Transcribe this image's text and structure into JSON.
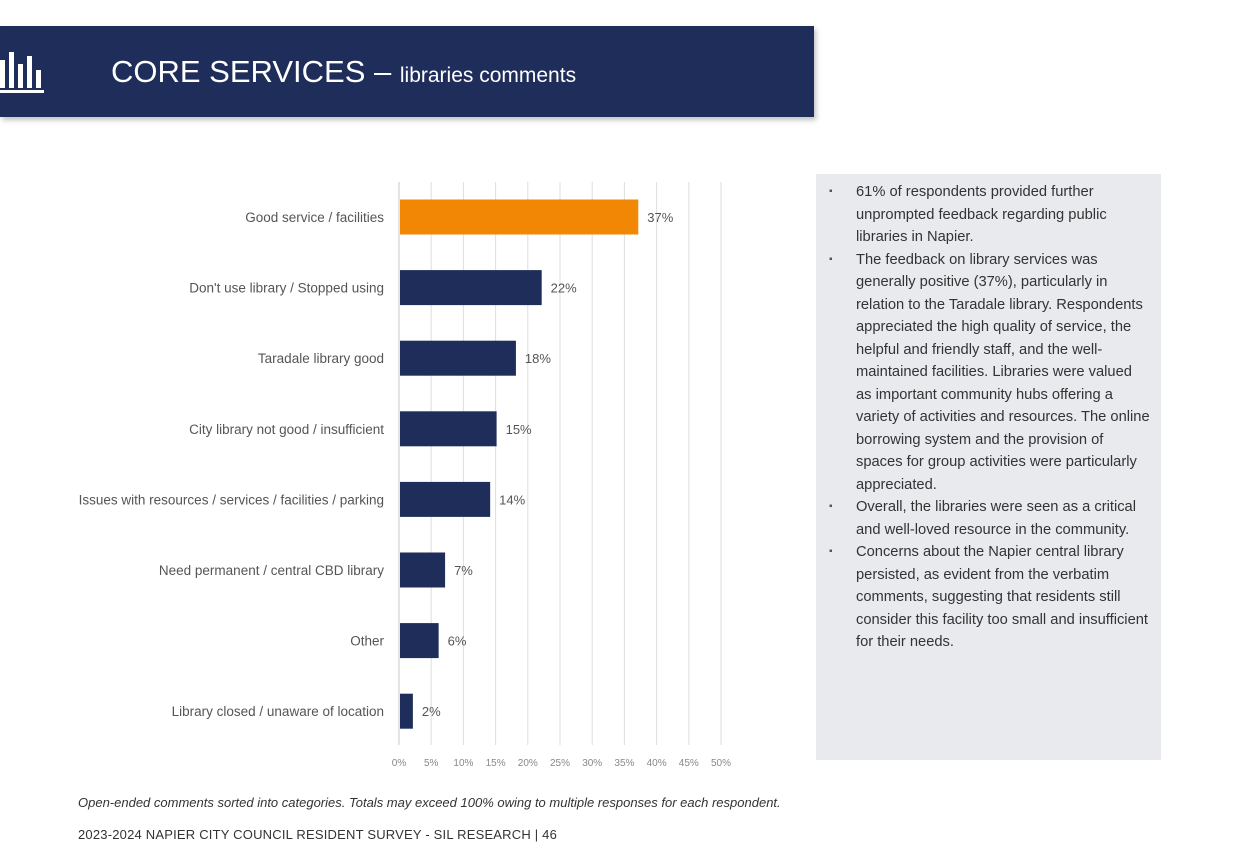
{
  "header": {
    "title_main": "CORE SERVICES",
    "title_sep": " – ",
    "title_sub": "libraries comments",
    "icon": "bar-chart-icon",
    "background_color": "#1f2d5a"
  },
  "chart_data": {
    "type": "bar",
    "orientation": "horizontal",
    "categories": [
      "Good service / facilities",
      "Don't use library / Stopped using",
      "Taradale library good",
      "City library not good / insufficient",
      "Issues with resources / services / facilities / parking",
      "Need permanent / central CBD library",
      "Other",
      "Library closed / unaware of location"
    ],
    "values": [
      37,
      22,
      18,
      15,
      14,
      7,
      6,
      2
    ],
    "value_labels": [
      "37%",
      "22%",
      "18%",
      "15%",
      "14%",
      "7%",
      "6%",
      "2%"
    ],
    "xlim": [
      0,
      50
    ],
    "x_ticks": [
      "0%",
      "5%",
      "10%",
      "15%",
      "20%",
      "25%",
      "30%",
      "35%",
      "40%",
      "45%",
      "50%"
    ],
    "grid": true,
    "colors": {
      "highlight": "#f28705",
      "default": "#1f2d5a"
    },
    "highlight_index": 0
  },
  "summary": {
    "bullets": [
      "61% of respondents provided further unprompted feedback regarding public libraries in Napier.",
      "The feedback on library services was generally positive (37%), particularly in relation to the Taradale library. Respondents appreciated the high quality of service, the helpful and friendly staff, and the well-maintained facilities. Libraries were valued as important community hubs offering a variety of activities and resources. The online borrowing system and the provision of spaces for group activities were particularly appreciated.",
      "Overall, the libraries were seen as a critical and well-loved resource in the community.",
      "Concerns about the Napier central library persisted, as evident from the verbatim comments, suggesting that residents still consider this facility too small and insufficient for their needs."
    ],
    "bullet_glyph": "▪"
  },
  "footnote": "Open-ended comments sorted into categories. Totals may exceed 100% owing to multiple responses for each respondent.",
  "footer": "2023-2024 NAPIER CITY COUNCIL RESIDENT SURVEY - SIL RESEARCH | 46"
}
